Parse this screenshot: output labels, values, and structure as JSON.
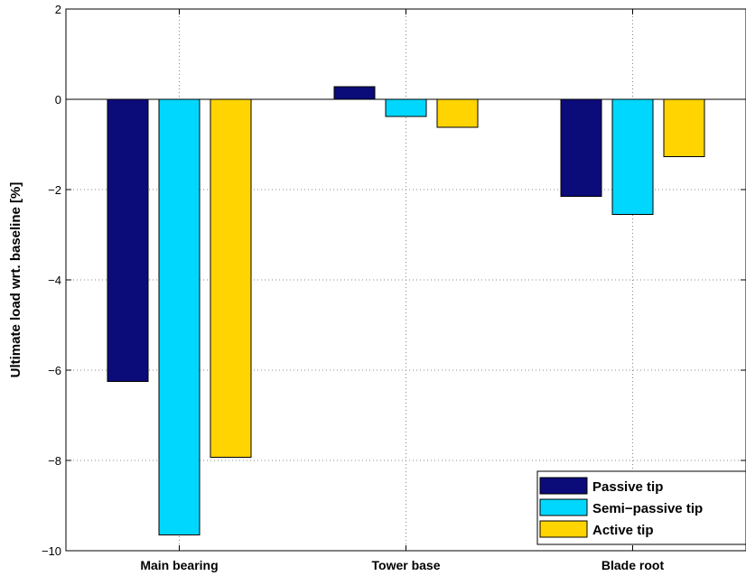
{
  "chart_data": {
    "type": "bar",
    "categories": [
      "Main bearing",
      "Tower base",
      "Blade root"
    ],
    "series": [
      {
        "name": "Passive tip",
        "color": "#0b0b7a",
        "values": [
          -6.25,
          0.28,
          -2.15
        ]
      },
      {
        "name": "Semi−passive tip",
        "color": "#00d7ff",
        "values": [
          -9.65,
          -0.38,
          -2.55
        ]
      },
      {
        "name": "Active tip",
        "color": "#ffd400",
        "values": [
          -7.93,
          -0.62,
          -1.27
        ]
      }
    ],
    "ylabel": "Ultimate load wrt. baseline [%]",
    "xlabel": "",
    "title": "",
    "ylim": [
      -10,
      2
    ],
    "yticks": [
      2,
      0,
      -2,
      -4,
      -6,
      -8,
      -10
    ],
    "ytick_labels": [
      "2",
      "0",
      "−2",
      "−4",
      "−6",
      "−8",
      "−10"
    ],
    "grid": true,
    "legend_position": "bottom-right"
  }
}
